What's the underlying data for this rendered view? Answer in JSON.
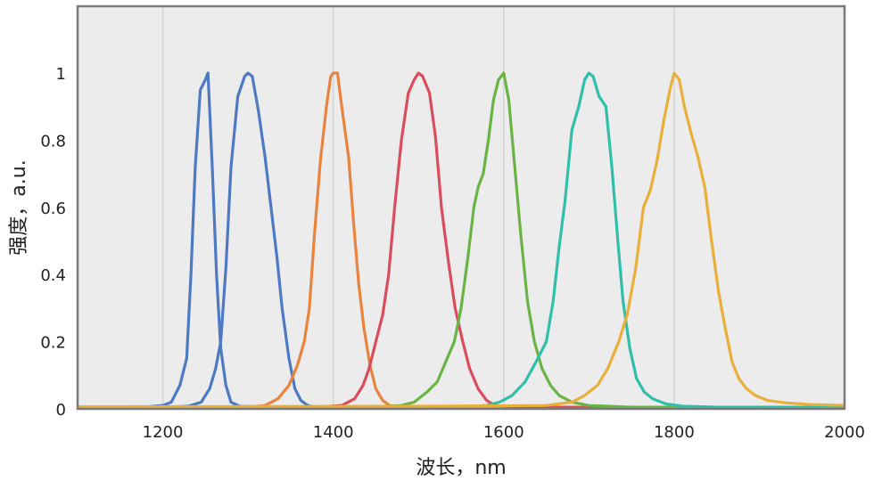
{
  "chart_data": {
    "type": "line",
    "xlabel": "波长，nm",
    "ylabel": "强度，a.u.",
    "xlim": [
      1100,
      2000
    ],
    "ylim": [
      0,
      1.0
    ],
    "x_ticks": [
      1200,
      1400,
      1600,
      1800,
      2000
    ],
    "y_ticks": [
      "0",
      "0.2",
      "0.4",
      "0.6",
      "0.8",
      "1"
    ],
    "grid": "vertical-only",
    "plot_background": "#ececec",
    "series": [
      {
        "color": "#4e79c3",
        "points": [
          [
            1100,
            0.005
          ],
          [
            1180,
            0.006
          ],
          [
            1200,
            0.01
          ],
          [
            1210,
            0.02
          ],
          [
            1220,
            0.07
          ],
          [
            1228,
            0.15
          ],
          [
            1233,
            0.4
          ],
          [
            1238,
            0.72
          ],
          [
            1244,
            0.95
          ],
          [
            1250,
            0.98
          ],
          [
            1253,
            1.0
          ],
          [
            1258,
            0.72
          ],
          [
            1263,
            0.4
          ],
          [
            1268,
            0.18
          ],
          [
            1274,
            0.07
          ],
          [
            1280,
            0.02
          ],
          [
            1290,
            0.008
          ],
          [
            1320,
            0.005
          ],
          [
            1500,
            0.004
          ],
          [
            2000,
            0.004
          ]
        ]
      },
      {
        "color": "#4e79c3",
        "points": [
          [
            1100,
            0.003
          ],
          [
            1200,
            0.004
          ],
          [
            1230,
            0.008
          ],
          [
            1245,
            0.02
          ],
          [
            1255,
            0.06
          ],
          [
            1262,
            0.12
          ],
          [
            1268,
            0.2
          ],
          [
            1274,
            0.42
          ],
          [
            1280,
            0.72
          ],
          [
            1288,
            0.93
          ],
          [
            1296,
            0.99
          ],
          [
            1300,
            1.0
          ],
          [
            1305,
            0.99
          ],
          [
            1312,
            0.89
          ],
          [
            1320,
            0.75
          ],
          [
            1327,
            0.6
          ],
          [
            1334,
            0.45
          ],
          [
            1340,
            0.3
          ],
          [
            1348,
            0.15
          ],
          [
            1355,
            0.06
          ],
          [
            1362,
            0.025
          ],
          [
            1370,
            0.01
          ],
          [
            1380,
            0.005
          ],
          [
            1500,
            0.003
          ],
          [
            2000,
            0.003
          ]
        ]
      },
      {
        "color": "#e9843f",
        "points": [
          [
            1100,
            0.004
          ],
          [
            1300,
            0.005
          ],
          [
            1320,
            0.01
          ],
          [
            1335,
            0.03
          ],
          [
            1348,
            0.07
          ],
          [
            1358,
            0.13
          ],
          [
            1366,
            0.2
          ],
          [
            1372,
            0.3
          ],
          [
            1378,
            0.52
          ],
          [
            1385,
            0.74
          ],
          [
            1392,
            0.9
          ],
          [
            1397,
            0.99
          ],
          [
            1400,
            1.0
          ],
          [
            1405,
            1.0
          ],
          [
            1410,
            0.9
          ],
          [
            1418,
            0.75
          ],
          [
            1424,
            0.55
          ],
          [
            1430,
            0.37
          ],
          [
            1436,
            0.24
          ],
          [
            1443,
            0.13
          ],
          [
            1450,
            0.06
          ],
          [
            1458,
            0.025
          ],
          [
            1466,
            0.01
          ],
          [
            1480,
            0.006
          ],
          [
            1600,
            0.005
          ],
          [
            2000,
            0.005
          ]
        ]
      },
      {
        "color": "#d94e5d",
        "points": [
          [
            1100,
            0.003
          ],
          [
            1380,
            0.005
          ],
          [
            1410,
            0.01
          ],
          [
            1425,
            0.03
          ],
          [
            1435,
            0.07
          ],
          [
            1442,
            0.12
          ],
          [
            1450,
            0.2
          ],
          [
            1458,
            0.28
          ],
          [
            1465,
            0.4
          ],
          [
            1472,
            0.6
          ],
          [
            1480,
            0.8
          ],
          [
            1488,
            0.94
          ],
          [
            1495,
            0.98
          ],
          [
            1500,
            1.0
          ],
          [
            1505,
            0.99
          ],
          [
            1513,
            0.94
          ],
          [
            1520,
            0.81
          ],
          [
            1527,
            0.6
          ],
          [
            1535,
            0.44
          ],
          [
            1543,
            0.3
          ],
          [
            1552,
            0.2
          ],
          [
            1560,
            0.12
          ],
          [
            1570,
            0.06
          ],
          [
            1580,
            0.025
          ],
          [
            1590,
            0.01
          ],
          [
            1610,
            0.005
          ],
          [
            2000,
            0.004
          ]
        ]
      },
      {
        "color": "#6ab446",
        "points": [
          [
            1100,
            0.005
          ],
          [
            1450,
            0.006
          ],
          [
            1480,
            0.01
          ],
          [
            1495,
            0.02
          ],
          [
            1510,
            0.05
          ],
          [
            1522,
            0.08
          ],
          [
            1532,
            0.14
          ],
          [
            1542,
            0.2
          ],
          [
            1550,
            0.3
          ],
          [
            1558,
            0.45
          ],
          [
            1565,
            0.6
          ],
          [
            1570,
            0.66
          ],
          [
            1576,
            0.7
          ],
          [
            1582,
            0.8
          ],
          [
            1588,
            0.92
          ],
          [
            1594,
            0.98
          ],
          [
            1600,
            1.0
          ],
          [
            1606,
            0.92
          ],
          [
            1612,
            0.75
          ],
          [
            1620,
            0.52
          ],
          [
            1628,
            0.32
          ],
          [
            1636,
            0.2
          ],
          [
            1645,
            0.12
          ],
          [
            1655,
            0.07
          ],
          [
            1665,
            0.04
          ],
          [
            1680,
            0.02
          ],
          [
            1700,
            0.01
          ],
          [
            1750,
            0.005
          ],
          [
            2000,
            0.004
          ]
        ]
      },
      {
        "color": "#2fbfaa",
        "points": [
          [
            1100,
            0.002
          ],
          [
            1550,
            0.005
          ],
          [
            1580,
            0.01
          ],
          [
            1595,
            0.02
          ],
          [
            1610,
            0.04
          ],
          [
            1625,
            0.08
          ],
          [
            1638,
            0.14
          ],
          [
            1650,
            0.2
          ],
          [
            1658,
            0.32
          ],
          [
            1665,
            0.48
          ],
          [
            1672,
            0.62
          ],
          [
            1680,
            0.83
          ],
          [
            1688,
            0.9
          ],
          [
            1695,
            0.98
          ],
          [
            1700,
            1.0
          ],
          [
            1705,
            0.99
          ],
          [
            1712,
            0.93
          ],
          [
            1720,
            0.9
          ],
          [
            1727,
            0.72
          ],
          [
            1734,
            0.5
          ],
          [
            1740,
            0.32
          ],
          [
            1748,
            0.18
          ],
          [
            1756,
            0.09
          ],
          [
            1765,
            0.05
          ],
          [
            1775,
            0.03
          ],
          [
            1790,
            0.015
          ],
          [
            1810,
            0.008
          ],
          [
            1850,
            0.005
          ],
          [
            2000,
            0.004
          ]
        ]
      },
      {
        "color": "#e8b03a",
        "points": [
          [
            1100,
            0.006
          ],
          [
            1300,
            0.007
          ],
          [
            1500,
            0.008
          ],
          [
            1600,
            0.009
          ],
          [
            1650,
            0.01
          ],
          [
            1680,
            0.02
          ],
          [
            1695,
            0.04
          ],
          [
            1710,
            0.07
          ],
          [
            1722,
            0.12
          ],
          [
            1735,
            0.2
          ],
          [
            1745,
            0.28
          ],
          [
            1755,
            0.42
          ],
          [
            1764,
            0.6
          ],
          [
            1772,
            0.65
          ],
          [
            1780,
            0.74
          ],
          [
            1788,
            0.86
          ],
          [
            1795,
            0.95
          ],
          [
            1800,
            1.0
          ],
          [
            1806,
            0.98
          ],
          [
            1812,
            0.9
          ],
          [
            1820,
            0.82
          ],
          [
            1828,
            0.75
          ],
          [
            1836,
            0.66
          ],
          [
            1844,
            0.5
          ],
          [
            1852,
            0.35
          ],
          [
            1860,
            0.24
          ],
          [
            1868,
            0.14
          ],
          [
            1876,
            0.09
          ],
          [
            1885,
            0.06
          ],
          [
            1895,
            0.04
          ],
          [
            1910,
            0.025
          ],
          [
            1930,
            0.018
          ],
          [
            1960,
            0.013
          ],
          [
            2000,
            0.01
          ]
        ]
      }
    ]
  }
}
